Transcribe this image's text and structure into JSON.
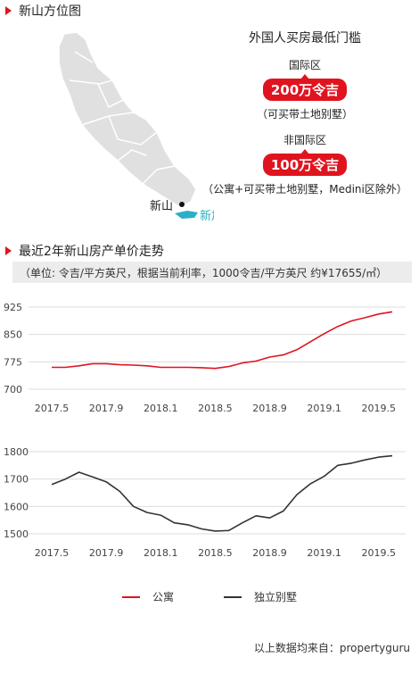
{
  "section1": {
    "title": "新山方位图"
  },
  "map": {
    "johor_label": "新山",
    "singapore_label": "新加坡"
  },
  "info": {
    "title": "外国人买房最低门槛",
    "zone1": {
      "label": "国际区",
      "price": "200万令吉",
      "note": "（可买带土地别墅）"
    },
    "zone2": {
      "label": "非国际区",
      "price": "100万令吉",
      "note": "（公寓+可买带土地别墅，Medini区除外）"
    }
  },
  "section2": {
    "title": "最近2年新山房产单价走势",
    "subtitle": "（单位: 令吉/平方英尺，根据当前利率，1000令吉/平方英尺 约¥17655/㎡）"
  },
  "chart_data": [
    {
      "type": "line",
      "x": [
        0,
        1,
        2,
        3,
        4,
        5,
        6,
        7,
        8,
        9,
        10,
        11,
        12,
        13,
        14,
        15,
        16,
        17,
        18,
        19,
        20,
        21,
        22,
        23,
        24,
        25
      ],
      "x_tick_labels": [
        "2017.5",
        "2017.9",
        "2018.1",
        "2018.5",
        "2018.9",
        "2019.1",
        "2019.5"
      ],
      "x_tick_positions": [
        0,
        4,
        8,
        12,
        16,
        20,
        24
      ],
      "ylim": [
        700,
        925
      ],
      "yticks": [
        700,
        775,
        850,
        925
      ],
      "series": [
        {
          "name": "公寓",
          "color": "#e0141e",
          "values": [
            760,
            760,
            764,
            770,
            770,
            767,
            766,
            764,
            760,
            760,
            760,
            759,
            757,
            762,
            772,
            777,
            788,
            794,
            808,
            830,
            852,
            872,
            887,
            896,
            906,
            912
          ]
        }
      ]
    },
    {
      "type": "line",
      "x": [
        0,
        1,
        2,
        3,
        4,
        5,
        6,
        7,
        8,
        9,
        10,
        11,
        12,
        13,
        14,
        15,
        16,
        17,
        18,
        19,
        20,
        21,
        22,
        23,
        24,
        25
      ],
      "x_tick_labels": [
        "2017.5",
        "2017.9",
        "2018.1",
        "2018.5",
        "2018.9",
        "2019.1",
        "2019.5"
      ],
      "x_tick_positions": [
        0,
        4,
        8,
        12,
        16,
        20,
        24
      ],
      "ylim": [
        1500,
        1800
      ],
      "yticks": [
        1500,
        1600,
        1700,
        1800
      ],
      "series": [
        {
          "name": "独立别墅",
          "color": "#333333",
          "values": [
            1680,
            1700,
            1725,
            1708,
            1690,
            1655,
            1600,
            1578,
            1568,
            1540,
            1533,
            1518,
            1510,
            1512,
            1540,
            1566,
            1558,
            1583,
            1643,
            1683,
            1710,
            1750,
            1758,
            1770,
            1780,
            1785
          ]
        }
      ]
    }
  ],
  "legend": {
    "item1": "公寓",
    "item2": "独立别墅",
    "color1": "#e0141e",
    "color2": "#333333"
  },
  "source": "以上数据均来自：propertyguru"
}
